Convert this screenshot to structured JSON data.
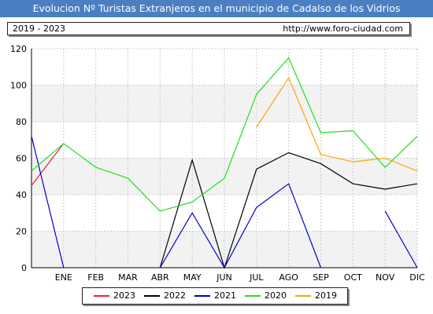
{
  "header": {
    "title": "Evolucion Nº Turistas Extranjeros en el municipio de Cadalso de los Vidrios",
    "period": "2019 - 2023",
    "source": "http://www.foro-ciudad.com"
  },
  "colors": {
    "title_bg": "#4a7fc1",
    "grid": "#cccccc",
    "band": "#f2f2f2"
  },
  "chart_data": {
    "type": "line",
    "categories": [
      "",
      "ENE",
      "FEB",
      "MAR",
      "ABR",
      "MAY",
      "JUN",
      "JUL",
      "AGO",
      "SEP",
      "OCT",
      "NOV",
      "DIC"
    ],
    "ylim": [
      0,
      120
    ],
    "yticks": [
      0,
      20,
      40,
      60,
      80,
      100,
      120
    ],
    "grid": true,
    "legend_position": "bottom",
    "series": [
      {
        "name": "2023",
        "color": "#ee2222",
        "values": [
          45,
          68,
          null,
          null,
          null,
          null,
          null,
          null,
          null,
          null,
          null,
          null,
          null
        ]
      },
      {
        "name": "2022",
        "color": "#000000",
        "values": [
          null,
          null,
          null,
          null,
          0,
          59,
          0,
          54,
          63,
          57,
          46,
          43,
          46
        ]
      },
      {
        "name": "2021",
        "color": "#0000cc",
        "values": [
          72,
          0,
          null,
          null,
          0,
          30,
          0,
          33,
          46,
          0,
          null,
          31,
          0
        ]
      },
      {
        "name": "2020",
        "color": "#22dd22",
        "values": [
          53,
          68,
          55,
          49,
          31,
          36,
          49,
          95,
          115,
          74,
          75,
          55,
          72
        ]
      },
      {
        "name": "2019",
        "color": "#ffa500",
        "values": [
          null,
          null,
          null,
          null,
          null,
          null,
          null,
          77,
          104,
          62,
          58,
          60,
          53
        ]
      }
    ]
  }
}
